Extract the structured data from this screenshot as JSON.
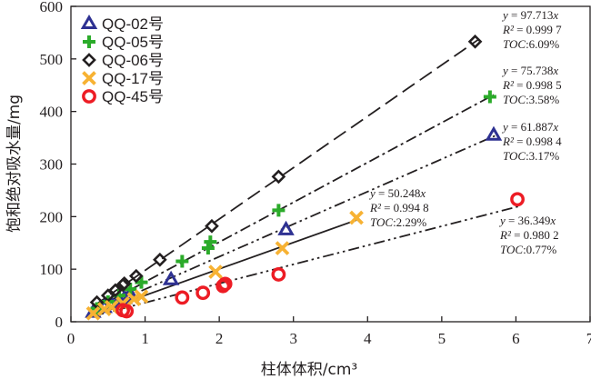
{
  "chart_data": {
    "type": "scatter",
    "xlabel": "柱体体积/cm³",
    "ylabel": "饱和绝对吸水量/mg",
    "xlim": [
      0,
      7
    ],
    "ylim": [
      0,
      600
    ],
    "xticks": [
      0,
      1,
      2,
      3,
      4,
      5,
      6,
      7
    ],
    "yticks": [
      0,
      100,
      200,
      300,
      400,
      500,
      600
    ],
    "grid": false,
    "legend_position": "top-left",
    "series": [
      {
        "name": "QQ-02号",
        "color": "#2e3192",
        "marker": "triangle-open",
        "line_style": "dash-dot-dot",
        "line_color": "#231f20",
        "fit": {
          "slope": 61.887,
          "x_range": [
            0.3,
            5.75
          ]
        },
        "points": [
          [
            0.3,
            18
          ],
          [
            0.45,
            27
          ],
          [
            0.55,
            33
          ],
          [
            0.65,
            40
          ],
          [
            0.72,
            44
          ],
          [
            0.8,
            52
          ],
          [
            1.35,
            80
          ],
          [
            2.9,
            175
          ],
          [
            5.7,
            355
          ]
        ],
        "annotation": [
          "y = 61.887x",
          "R² = 0.998 4",
          "TOC:3.17%"
        ]
      },
      {
        "name": "QQ-05号",
        "color": "#2bab2a",
        "marker": "plus",
        "line_style": "dash-dot",
        "line_color": "#231f20",
        "fit": {
          "slope": 75.738,
          "x_range": [
            0.3,
            5.7
          ]
        },
        "points": [
          [
            0.35,
            25
          ],
          [
            0.5,
            38
          ],
          [
            0.65,
            50
          ],
          [
            0.8,
            62
          ],
          [
            0.95,
            75
          ],
          [
            1.5,
            115
          ],
          [
            1.85,
            140
          ],
          [
            1.88,
            152
          ],
          [
            2.8,
            212
          ],
          [
            5.65,
            428
          ]
        ],
        "annotation": [
          "y = 75.738x",
          "R² = 0.998 5",
          "TOC:3.58%"
        ]
      },
      {
        "name": "QQ-06号",
        "color": "#231f20",
        "marker": "diamond-open",
        "line_style": "long-dash",
        "line_color": "#231f20",
        "fit": {
          "slope": 97.713,
          "x_range": [
            0.3,
            5.5
          ]
        },
        "points": [
          [
            0.35,
            37
          ],
          [
            0.5,
            50
          ],
          [
            0.6,
            60
          ],
          [
            0.7,
            70
          ],
          [
            0.72,
            73
          ],
          [
            0.88,
            87
          ],
          [
            1.2,
            118
          ],
          [
            1.9,
            182
          ],
          [
            2.8,
            276
          ],
          [
            5.45,
            533
          ]
        ],
        "annotation": [
          "y = 97.713x",
          "R² = 0.999 7",
          "TOC:6.09%"
        ]
      },
      {
        "name": "QQ-17号",
        "color": "#f7b233",
        "marker": "x",
        "line_style": "solid",
        "line_color": "#231f20",
        "fit": {
          "slope": 50.248,
          "x_range": [
            0.3,
            3.85
          ]
        },
        "points": [
          [
            0.3,
            16
          ],
          [
            0.45,
            24
          ],
          [
            0.55,
            28
          ],
          [
            0.7,
            35
          ],
          [
            0.85,
            43
          ],
          [
            0.95,
            48
          ],
          [
            1.95,
            95
          ],
          [
            2.85,
            140
          ],
          [
            3.85,
            198
          ]
        ],
        "annotation": [
          "y = 50.248x",
          "R² = 0.994 8",
          "TOC:2.29%"
        ]
      },
      {
        "name": "QQ-45号",
        "color": "#ed1c24",
        "marker": "circle-open",
        "line_style": "dash-dot-dot",
        "line_color": "#231f20",
        "fit": {
          "slope": 36.349,
          "x_range": [
            0.3,
            6.05
          ]
        },
        "points": [
          [
            0.7,
            22
          ],
          [
            0.75,
            20
          ],
          [
            1.5,
            46
          ],
          [
            1.78,
            55
          ],
          [
            2.05,
            68
          ],
          [
            2.08,
            72
          ],
          [
            2.8,
            90
          ],
          [
            6.02,
            233
          ]
        ],
        "annotation": [
          "y = 36.349x",
          "R² = 0.980 2",
          "TOC:0.77%"
        ]
      }
    ]
  }
}
